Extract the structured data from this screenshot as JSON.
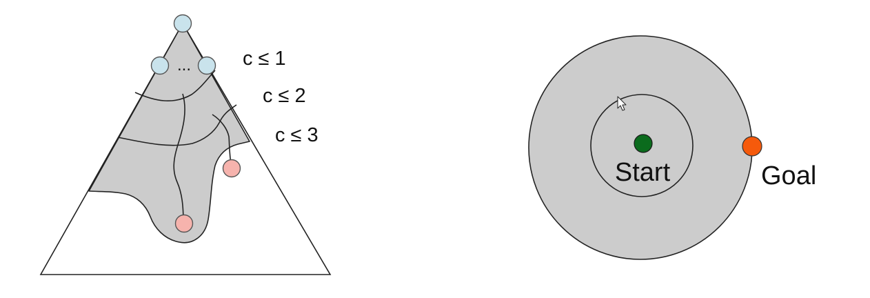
{
  "left_diagram": {
    "contour_labels": [
      "c ≤ 1",
      "c ≤ 2",
      "c ≤ 3"
    ],
    "ellipsis": "...",
    "colors": {
      "explored_fill": "#cccccc",
      "outline": "#222222",
      "start_node": "#c9e3ec",
      "frontier_node": "#f6b3ad"
    }
  },
  "right_diagram": {
    "start_label": "Start",
    "goal_label": "Goal",
    "colors": {
      "explored_fill": "#cccccc",
      "start_node": "#0b6b1d",
      "goal_node": "#f55a0c"
    }
  }
}
